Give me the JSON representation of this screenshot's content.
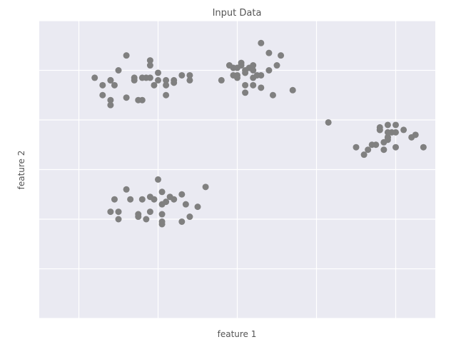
{
  "chart_data": {
    "type": "scatter",
    "title": "Input Data",
    "xlabel": "feature 1",
    "ylabel": "feature 2",
    "xlim": [
      -3.5,
      1.5
    ],
    "ylim": [
      -9.0,
      -3.0
    ],
    "grid": true,
    "tick_labels_visible": false,
    "colors": {
      "background": "#eaeaf2",
      "grid": "#ffffff",
      "point": "#808080"
    },
    "x": [
      -1.9,
      -2.0,
      -2.1,
      -2.7,
      -2.1,
      -2.2,
      -1.9,
      -2.0,
      -2.4,
      -1.8,
      -2.3,
      -1.7,
      -2.1,
      -1.6,
      -2.05,
      -1.9,
      -2.5,
      -2.8,
      -2.25,
      -2.15,
      -2.3,
      -2.6,
      -2.4,
      -2.2,
      -2.6,
      -2.7,
      -2.55,
      -2.6,
      -2.6,
      -1.8,
      -1.6,
      -1.0,
      -0.8,
      -0.9,
      -1.1,
      -1.2,
      -0.9,
      -1.0,
      -0.75,
      -0.5,
      -0.7,
      -0.6,
      -0.8,
      -0.8,
      -0.85,
      -0.7,
      -0.6,
      -0.9,
      -0.95,
      -1.0,
      -0.95,
      -1.05,
      -0.45,
      -0.3,
      -0.7,
      -0.55,
      -0.9,
      -0.8,
      -1.05,
      0.9,
      0.8,
      1.0,
      1.0,
      1.2,
      0.9,
      0.8,
      0.7,
      0.75,
      1.1,
      0.5,
      0.65,
      0.6,
      0.85,
      0.9,
      0.95,
      1.0,
      0.9,
      0.9,
      0.8,
      0.85,
      1.25,
      1.35,
      0.15,
      -2.5,
      -2.4,
      -2.0,
      -2.2,
      -2.1,
      -1.95,
      -2.25,
      -2.35,
      -2.1,
      -1.9,
      -1.8,
      -2.05,
      -1.7,
      -1.65,
      -1.85,
      -1.95,
      -1.95,
      -1.95,
      -2.15,
      -2.5,
      -2.25,
      -2.6,
      -2.55,
      -1.6,
      -1.4,
      -1.5,
      -1.95,
      -1.7
    ],
    "y": [
      -4.3,
      -4.05,
      -3.9,
      -4.3,
      -3.8,
      -4.15,
      -4.5,
      -4.2,
      -4.55,
      -4.25,
      -4.2,
      -4.1,
      -4.15,
      -4.1,
      -4.3,
      -4.2,
      -4.0,
      -4.15,
      -4.6,
      -4.15,
      -4.15,
      -4.2,
      -3.7,
      -4.6,
      -4.6,
      -4.5,
      -4.3,
      -4.7,
      -4.2,
      -4.2,
      -4.2,
      -4.15,
      -4.3,
      -4.3,
      -3.9,
      -4.2,
      -4.0,
      -4.1,
      -4.1,
      -3.9,
      -3.45,
      -3.65,
      -3.9,
      -4.0,
      -3.95,
      -4.1,
      -4.0,
      -4.05,
      -3.85,
      -3.95,
      -3.9,
      -3.95,
      -3.7,
      -4.4,
      -4.35,
      -4.5,
      -4.45,
      -4.15,
      -4.1,
      -5.4,
      -5.2,
      -5.25,
      -5.1,
      -5.35,
      -5.1,
      -5.2,
      -5.5,
      -5.5,
      -5.2,
      -5.55,
      -5.6,
      -5.7,
      -5.45,
      -5.35,
      -5.25,
      -5.55,
      -5.25,
      -5.35,
      -5.15,
      -5.6,
      -5.3,
      -5.55,
      -5.05,
      -6.85,
      -6.4,
      -6.2,
      -6.6,
      -6.55,
      -6.45,
      -6.9,
      -6.6,
      -6.85,
      -6.65,
      -6.6,
      -6.6,
      -6.5,
      -6.7,
      -6.55,
      -6.7,
      -7.1,
      -7.05,
      -7.0,
      -7.0,
      -6.95,
      -6.85,
      -6.6,
      -6.95,
      -6.35,
      -6.75,
      -6.9,
      -7.05
    ]
  }
}
